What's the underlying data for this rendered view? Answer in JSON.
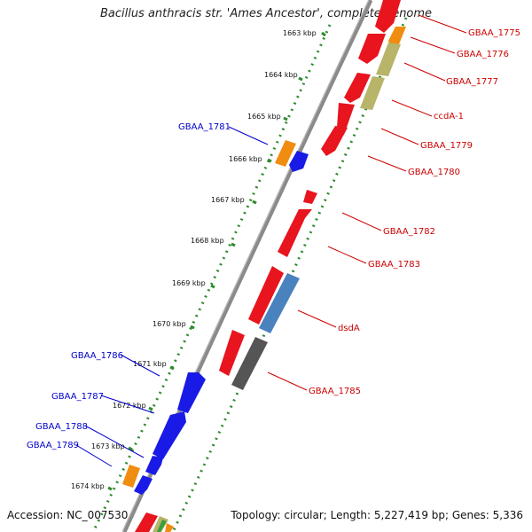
{
  "title": "Bacillus anthracis str. 'Ames Ancestor', complete genome",
  "accession": "Accession: NC_007530",
  "summary": "Topology: circular; Length: 5,227,419 bp; Genes: 5,336",
  "colors": {
    "backbone": "#8a8a8a",
    "tick_ring": "#2e8b2e",
    "forward_label": "#0000cc",
    "reverse_label": "#cc0000",
    "red_gene": "#e8141e",
    "blue_gene": "#1a1ae6",
    "orange_gene": "#f08c10",
    "olive_gene": "#b8b46a",
    "steelblue_gene": "#4a82be",
    "gray_gene": "#555555",
    "green_gene": "#3aa03a"
  },
  "kbp_ticks": [
    "1663 kbp",
    "1664 kbp",
    "1665 kbp",
    "1666 kbp",
    "1667 kbp",
    "1668 kbp",
    "1669 kbp",
    "1670 kbp",
    "1671 kbp",
    "1672 kbp",
    "1673 kbp",
    "1674 kbp"
  ],
  "reverse_labels": [
    "GBAA_1775",
    "GBAA_1776",
    "GBAA_1777",
    "ccdA-1",
    "GBAA_1779",
    "GBAA_1780",
    "GBAA_1782",
    "GBAA_1783",
    "dsdA",
    "GBAA_1785"
  ],
  "forward_labels": [
    "GBAA_1781",
    "GBAA_1786",
    "GBAA_1787",
    "GBAA_1788",
    "GBAA_1789"
  ]
}
